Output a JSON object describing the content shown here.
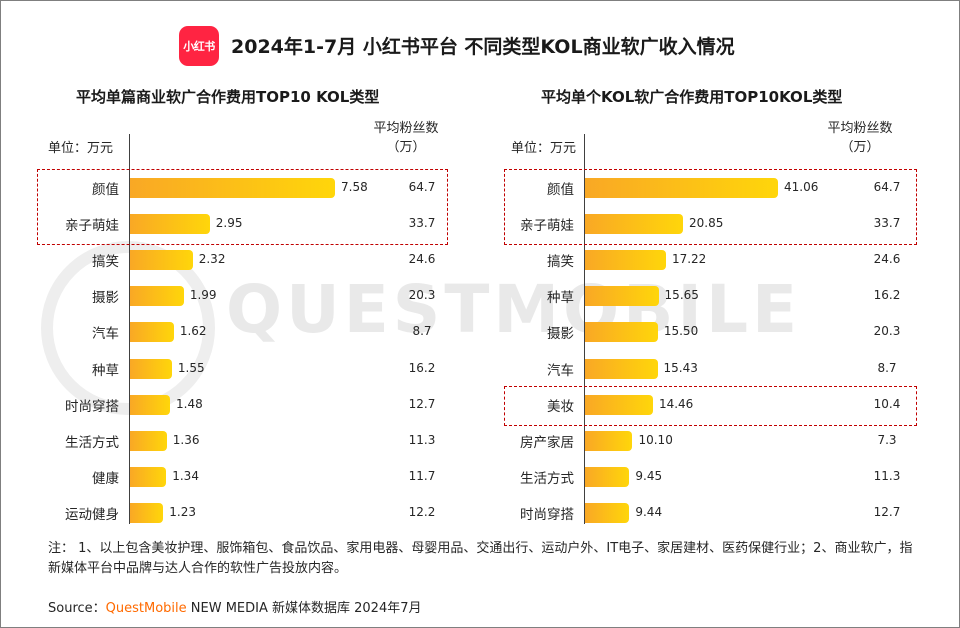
{
  "logo_text": "小红书",
  "title": "2024年1-7月 小红书平台 不同类型KOL商业软广收入情况",
  "watermark": "QUESTMOBILE",
  "colors": {
    "bar_start": "#f9a825",
    "bar_end": "#ffd60a",
    "highlight": "#c00000",
    "brand_orange": "#ff6a00",
    "logo_red": "#ff2442"
  },
  "chart_data": [
    {
      "type": "bar",
      "orientation": "horizontal",
      "title": "平均单篇商业软广合作费用TOP10 KOL类型",
      "unit_label": "单位：万元",
      "fans_header_line1": "平均粉丝数",
      "fans_header_line2": "（万）",
      "categories": [
        "颜值",
        "亲子萌娃",
        "搞笑",
        "摄影",
        "汽车",
        "种草",
        "时尚穿搭",
        "生活方式",
        "健康",
        "运动健身"
      ],
      "value_labels": [
        "7.58",
        "2.95",
        "2.32",
        "1.99",
        "1.62",
        "1.55",
        "1.48",
        "1.36",
        "1.34",
        "1.23"
      ],
      "values": [
        7.58,
        2.95,
        2.32,
        1.99,
        1.62,
        1.55,
        1.48,
        1.36,
        1.34,
        1.23
      ],
      "fans_labels": [
        "64.7",
        "33.7",
        "24.6",
        "20.3",
        "8.7",
        "16.2",
        "12.7",
        "11.3",
        "11.7",
        "12.2"
      ],
      "highlighted_categories": [
        "颜值",
        "亲子萌娃"
      ]
    },
    {
      "type": "bar",
      "orientation": "horizontal",
      "title": "平均单个KOL软广合作费用TOP10KOL类型",
      "unit_label": "单位：万元",
      "fans_header_line1": "平均粉丝数",
      "fans_header_line2": "（万）",
      "categories": [
        "颜值",
        "亲子萌娃",
        "搞笑",
        "种草",
        "摄影",
        "汽车",
        "美妆",
        "房产家居",
        "生活方式",
        "时尚穿搭"
      ],
      "value_labels": [
        "41.06",
        "20.85",
        "17.22",
        "15.65",
        "15.50",
        "15.43",
        "14.46",
        "10.10",
        "9.45",
        "9.44"
      ],
      "values": [
        41.06,
        20.85,
        17.22,
        15.65,
        15.5,
        15.43,
        14.46,
        10.1,
        9.45,
        9.44
      ],
      "fans_labels": [
        "64.7",
        "33.7",
        "24.6",
        "16.2",
        "20.3",
        "8.7",
        "10.4",
        "7.3",
        "11.3",
        "12.7"
      ],
      "highlighted_categories": [
        "颜值",
        "亲子萌娃",
        "美妆"
      ]
    }
  ],
  "note": "注：  1、以上包含美妆护理、服饰箱包、食品饮品、家用电器、母婴用品、交通出行、运动户外、IT电子、家居建材、医药保健行业；2、商业软广，指新媒体平台中品牌与达人合作的软性广告投放内容。",
  "source": {
    "prefix": "Source：",
    "brand": "QuestMobile",
    "suffix": " NEW MEDIA 新媒体数据库 2024年7月"
  }
}
